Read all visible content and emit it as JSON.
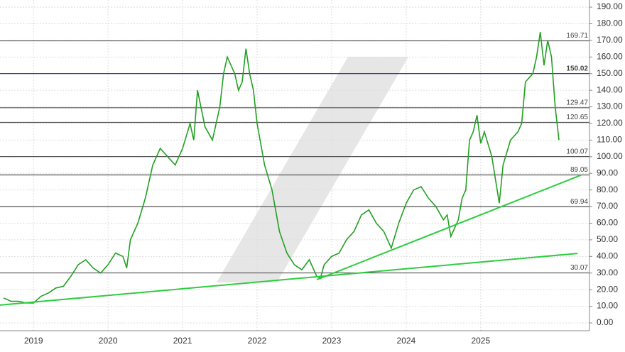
{
  "chart_data": {
    "type": "line",
    "xlim": [
      2018.55,
      2026.46
    ],
    "xticks": [
      2019,
      2020,
      2021,
      2022,
      2023,
      2024,
      2025
    ],
    "ylim": [
      -4.7,
      194.3
    ],
    "yticks": [
      {
        "value": 0,
        "label": "0.00"
      },
      {
        "value": 10,
        "label": "10.00"
      },
      {
        "value": 20,
        "label": "20.00"
      },
      {
        "value": 30,
        "label": "30.00"
      },
      {
        "value": 40,
        "label": "40.00"
      },
      {
        "value": 50,
        "label": "50.00"
      },
      {
        "value": 60,
        "label": "60.00"
      },
      {
        "value": 70,
        "label": "70.00"
      },
      {
        "value": 80,
        "label": "80.00"
      },
      {
        "value": 90,
        "label": "90.00"
      },
      {
        "value": 100,
        "label": "100.00"
      },
      {
        "value": 110,
        "label": "110.00"
      },
      {
        "value": 120,
        "label": "120.00"
      },
      {
        "value": 130,
        "label": "130.00"
      },
      {
        "value": 140,
        "label": "140.00"
      },
      {
        "value": 150,
        "label": "150.00"
      },
      {
        "value": 160,
        "label": "160.00"
      },
      {
        "value": 170,
        "label": "170.00"
      },
      {
        "value": 180,
        "label": "180.00"
      },
      {
        "value": 190,
        "label": "190.00"
      }
    ],
    "grid": true,
    "series": [
      {
        "color": "#22a022",
        "x": [
          2018.6,
          2018.7,
          2018.8,
          2018.9,
          2019.0,
          2019.1,
          2019.2,
          2019.3,
          2019.4,
          2019.5,
          2019.6,
          2019.7,
          2019.8,
          2019.9,
          2020.0,
          2020.1,
          2020.2,
          2020.25,
          2020.3,
          2020.4,
          2020.5,
          2020.6,
          2020.7,
          2020.8,
          2020.9,
          2021.0,
          2021.1,
          2021.15,
          2021.2,
          2021.3,
          2021.4,
          2021.5,
          2021.55,
          2021.6,
          2021.7,
          2021.75,
          2021.8,
          2021.85,
          2021.9,
          2021.95,
          2022.0,
          2022.1,
          2022.2,
          2022.3,
          2022.4,
          2022.5,
          2022.6,
          2022.7,
          2022.8,
          2022.85,
          2022.9,
          2023.0,
          2023.1,
          2023.2,
          2023.3,
          2023.4,
          2023.5,
          2023.6,
          2023.7,
          2023.8,
          2023.9,
          2024.0,
          2024.1,
          2024.2,
          2024.3,
          2024.4,
          2024.5,
          2024.55,
          2024.6,
          2024.7,
          2024.75,
          2024.8,
          2024.85,
          2024.9,
          2024.95,
          2025.0,
          2025.05,
          2025.15,
          2025.25,
          2025.3,
          2025.4,
          2025.5,
          2025.55,
          2025.6,
          2025.7,
          2025.75,
          2025.8,
          2025.85,
          2025.9,
          2025.95,
          2026.0,
          2026.05
        ],
        "values": [
          15,
          13,
          13,
          12,
          12,
          16,
          18,
          21,
          22,
          28,
          35,
          38,
          33,
          30,
          35,
          42,
          40,
          33,
          50,
          60,
          75,
          95,
          105,
          100,
          95,
          105,
          120,
          110,
          140,
          118,
          110,
          130,
          150,
          160,
          150,
          140,
          145,
          165,
          150,
          140,
          120,
          95,
          80,
          55,
          42,
          35,
          32,
          38,
          28,
          27,
          35,
          40,
          42,
          50,
          55,
          65,
          68,
          60,
          55,
          45,
          60,
          72,
          80,
          82,
          75,
          70,
          62,
          65,
          52,
          62,
          75,
          80,
          110,
          115,
          125,
          108,
          115,
          100,
          72,
          95,
          110,
          115,
          120,
          145,
          150,
          160,
          175,
          155,
          170,
          160,
          130,
          110
        ]
      }
    ],
    "levels": [
      {
        "value": 169.71,
        "color": "#555555",
        "bold": false
      },
      {
        "value": 150.02,
        "color": "#1a237e",
        "bold": true
      },
      {
        "value": 129.47,
        "color": "#555555",
        "bold": false
      },
      {
        "value": 120.65,
        "color": "#555555",
        "bold": false
      },
      {
        "value": 100.07,
        "color": "#555555",
        "bold": false
      },
      {
        "value": 89.05,
        "color": "#555555",
        "bold": false
      },
      {
        "value": 69.94,
        "color": "#555555",
        "bold": false
      },
      {
        "value": 30.07,
        "color": "#555555",
        "bold": false
      }
    ],
    "trendlines": [
      {
        "x": [
          2018.55,
          2026.3
        ],
        "values": [
          10.7,
          41.8
        ],
        "color": "#2ecc40"
      },
      {
        "x": [
          2022.8,
          2026.35
        ],
        "values": [
          26,
          89
        ],
        "color": "#2ecc40"
      }
    ]
  }
}
